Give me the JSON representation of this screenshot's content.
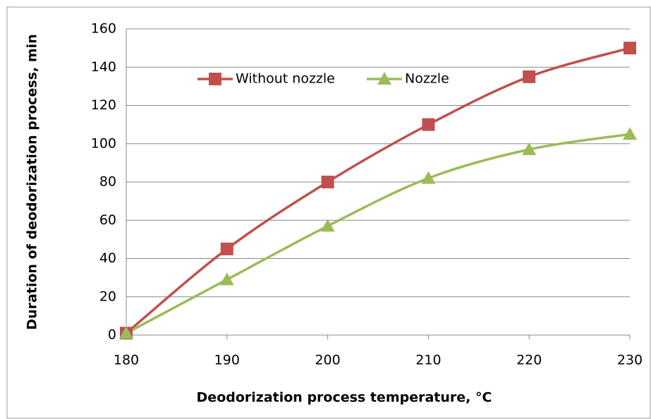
{
  "chart_data": {
    "type": "line",
    "x_label": "Deodorization process temperature, °C",
    "y_label": "Duration of deodorization process, min",
    "x": [
      180,
      190,
      200,
      210,
      220,
      230
    ],
    "series": [
      {
        "name": "Without nozzle",
        "color": "#c0504d",
        "marker": "square",
        "values": [
          1,
          45,
          80,
          110,
          135,
          150
        ]
      },
      {
        "name": "Nozzle",
        "color": "#9bbb59",
        "marker": "triangle",
        "values": [
          1,
          29,
          57,
          82,
          97,
          105
        ]
      }
    ],
    "xlim": [
      180,
      230
    ],
    "xticks": [
      180,
      190,
      200,
      210,
      220,
      230
    ],
    "ylim": [
      0,
      160
    ],
    "yticks": [
      0,
      20,
      40,
      60,
      80,
      100,
      120,
      140,
      160
    ],
    "grid": true,
    "legend": "top"
  }
}
